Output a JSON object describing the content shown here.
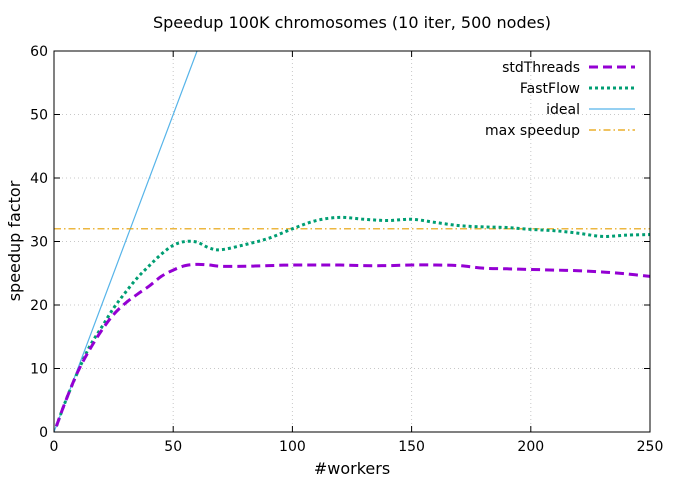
{
  "chart_data": {
    "type": "line",
    "title": "Speedup 100K chromosomes (10 iter, 500 nodes)",
    "xlabel": "#workers",
    "ylabel": "speedup factor",
    "xlim": [
      0,
      250
    ],
    "ylim": [
      0,
      60
    ],
    "xticks": [
      0,
      50,
      100,
      150,
      200,
      250
    ],
    "yticks": [
      0,
      10,
      20,
      30,
      40,
      50,
      60
    ],
    "grid": true,
    "legend_position": "top-right",
    "series": [
      {
        "name": "stdThreads",
        "color": "#9400d3",
        "style": "dashed",
        "x": [
          1,
          5,
          10,
          15,
          20,
          25,
          30,
          35,
          40,
          45,
          50,
          55,
          60,
          65,
          70,
          80,
          90,
          100,
          110,
          120,
          130,
          140,
          150,
          160,
          170,
          180,
          190,
          200,
          210,
          220,
          230,
          240,
          250
        ],
        "y": [
          0.9,
          5,
          9.5,
          13,
          16,
          18.5,
          20.3,
          21.7,
          23,
          24.5,
          25.5,
          26.2,
          26.4,
          26.3,
          26.1,
          26.1,
          26.2,
          26.3,
          26.3,
          26.3,
          26.2,
          26.2,
          26.3,
          26.3,
          26.2,
          25.8,
          25.7,
          25.6,
          25.5,
          25.4,
          25.2,
          24.9,
          24.5
        ]
      },
      {
        "name": "FastFlow",
        "color": "#009e73",
        "style": "dotted",
        "x": [
          1,
          5,
          10,
          15,
          20,
          25,
          30,
          35,
          40,
          45,
          50,
          55,
          60,
          65,
          70,
          80,
          90,
          100,
          110,
          120,
          130,
          140,
          150,
          160,
          170,
          180,
          190,
          200,
          210,
          220,
          230,
          240,
          250
        ],
        "y": [
          0.9,
          5,
          9.5,
          13.5,
          16.5,
          19.5,
          22,
          24.3,
          26.2,
          28,
          29.4,
          30,
          29.9,
          29,
          28.7,
          29.5,
          30.5,
          32,
          33.3,
          33.8,
          33.5,
          33.3,
          33.5,
          33,
          32.5,
          32.3,
          32.2,
          31.9,
          31.7,
          31.3,
          30.8,
          31,
          31.1
        ]
      },
      {
        "name": "ideal",
        "color": "#56b4e9",
        "style": "solid",
        "x": [
          0,
          60
        ],
        "y": [
          0,
          60
        ]
      },
      {
        "name": "max speedup",
        "color": "#e69f00",
        "style": "dashdot",
        "x": [
          0,
          250
        ],
        "y": [
          32,
          32
        ]
      }
    ]
  }
}
